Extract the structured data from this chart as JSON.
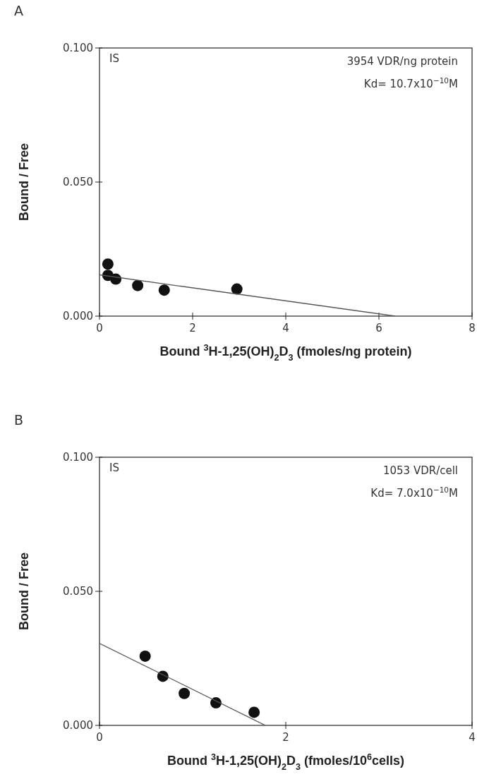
{
  "chart_data": [
    {
      "type": "scatter",
      "title": "A",
      "xlabel": "Bound $^{3}$H-1,25(OH)$_{2}$D$_{3}$ (fmoles/ng protein)",
      "ylabel": "Bound / Free",
      "xlim": [
        0,
        8
      ],
      "xticks": [
        0,
        2,
        4,
        6,
        8
      ],
      "ylim": [
        0,
        0.1
      ],
      "yticks": [
        {
          "value": 0,
          "label": "0.000"
        },
        {
          "value": 0.05,
          "label": "0.050"
        },
        {
          "value": 0.1,
          "label": "0.100"
        }
      ],
      "annotations": [
        "IS",
        "3954 VDR/ng protein",
        "Kd= 10.7x10$^{−10}$M"
      ],
      "series": [
        {
          "marker": "circle",
          "color": "#111111",
          "x": [
            0.18,
            0.18,
            0.35,
            0.82,
            1.39,
            2.95
          ],
          "values": [
            0.0194,
            0.0152,
            0.0138,
            0.0114,
            0.0097,
            0.0101
          ]
        },
        {
          "type": "line",
          "color": "#555555",
          "x": [
            0,
            6.35
          ],
          "values": [
            0.0154,
            0
          ]
        }
      ]
    },
    {
      "type": "scatter",
      "title": "B",
      "xlabel": "Bound $^{3}$H-1,25(OH)$_{2}$D$_{3}$ (fmoles/10$^{6}$cells)",
      "ylabel": "Bound / Free",
      "xlim": [
        0,
        4
      ],
      "xticks": [
        0,
        2,
        4
      ],
      "ylim": [
        0,
        0.1
      ],
      "yticks": [
        {
          "value": 0,
          "label": "0.000"
        },
        {
          "value": 0.05,
          "label": "0.050"
        },
        {
          "value": 0.1,
          "label": "0.100"
        }
      ],
      "annotations": [
        "IS",
        "1053 VDR/cell",
        "Kd= 7.0x10$^{−10}$M"
      ],
      "series": [
        {
          "marker": "circle",
          "color": "#111111",
          "x": [
            0.49,
            0.68,
            0.91,
            1.25,
            1.66
          ],
          "values": [
            0.0258,
            0.0183,
            0.0119,
            0.0084,
            0.0049
          ]
        },
        {
          "type": "line",
          "color": "#555555",
          "x": [
            0,
            1.78
          ],
          "values": [
            0.0306,
            0
          ]
        }
      ]
    }
  ]
}
